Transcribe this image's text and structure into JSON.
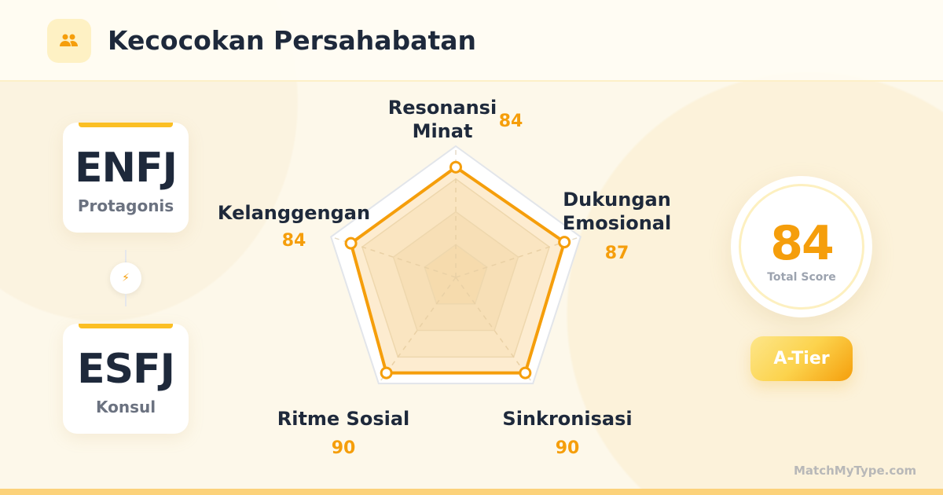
{
  "header": {
    "title": "Kecocokan Persahabatan",
    "icon": "people-icon"
  },
  "types": [
    {
      "code": "ENFJ",
      "name": "Protagonis"
    },
    {
      "code": "ESFJ",
      "name": "Konsul"
    }
  ],
  "connector_icon": "lightning-icon",
  "score": {
    "value": "84",
    "label": "Total Score"
  },
  "tier": "A-Tier",
  "brand": "MatchMyType.com",
  "colors": {
    "accent": "#f59e0b",
    "text": "#1e293b"
  },
  "chart_data": {
    "type": "radar",
    "range": [
      0,
      100
    ],
    "grid_levels": [
      25,
      50,
      75,
      100
    ],
    "axes": [
      {
        "label": [
          "Resonansi",
          "Minat"
        ],
        "value": 84
      },
      {
        "label": [
          "Dukungan",
          "Emosional"
        ],
        "value": 87
      },
      {
        "label": [
          "Sinkronisasi"
        ],
        "value": 90
      },
      {
        "label": [
          "Ritme Sosial"
        ],
        "value": 90
      },
      {
        "label": [
          "Kelanggengan"
        ],
        "value": 84
      }
    ]
  }
}
